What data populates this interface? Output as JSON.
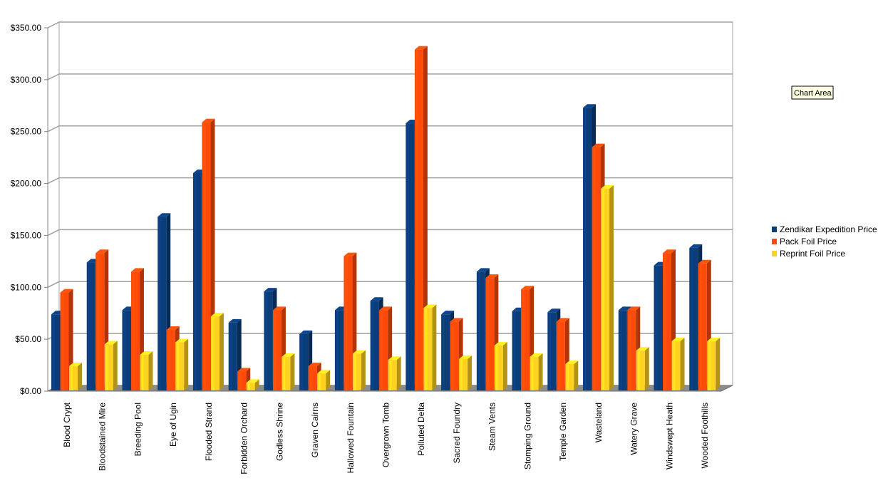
{
  "chart_data": {
    "type": "bar",
    "categories": [
      "Blood Crypt",
      "Bloodstained Mire",
      "Breeding Pool",
      "Eye of Ugin",
      "Flooded Strand",
      "Forbidden Orchard",
      "Godless Shrine",
      "Graven Cairns",
      "Hallowed Fountain",
      "Overgrown Tomb",
      "Polluted Delta",
      "Sacred Foundry",
      "Steam Vents",
      "Stomping Ground",
      "Temple Garden",
      "Wasteland",
      "Watery Grave",
      "Windswept Heath",
      "Wooded Foothills"
    ],
    "series": [
      {
        "name": "Zendikar Expedition Price",
        "color": "#0b3d7a",
        "values": [
          74,
          124,
          78,
          168,
          210,
          66,
          96,
          55,
          78,
          87,
          258,
          74,
          115,
          77,
          76,
          273,
          78,
          121,
          138
        ]
      },
      {
        "name": "Pack Foil Price",
        "color": "#ff4a0a",
        "values": [
          95,
          133,
          115,
          59,
          259,
          19,
          78,
          24,
          130,
          78,
          329,
          67,
          109,
          98,
          67,
          235,
          78,
          133,
          123
        ]
      },
      {
        "name": "Reprint Foil Price",
        "color": "#ffd21f",
        "values": [
          24,
          45,
          35,
          47,
          72,
          8,
          33,
          17,
          36,
          30,
          80,
          31,
          44,
          33,
          26,
          195,
          39,
          48,
          48
        ]
      }
    ],
    "yticks": [
      "$0.00",
      "$50.00",
      "$100.00",
      "$150.00",
      "$200.00",
      "$250.00",
      "$300.00",
      "$350.00"
    ],
    "ylim": [
      0,
      350
    ],
    "grid": true,
    "legend_position": "right",
    "tooltip": "Chart Area"
  }
}
